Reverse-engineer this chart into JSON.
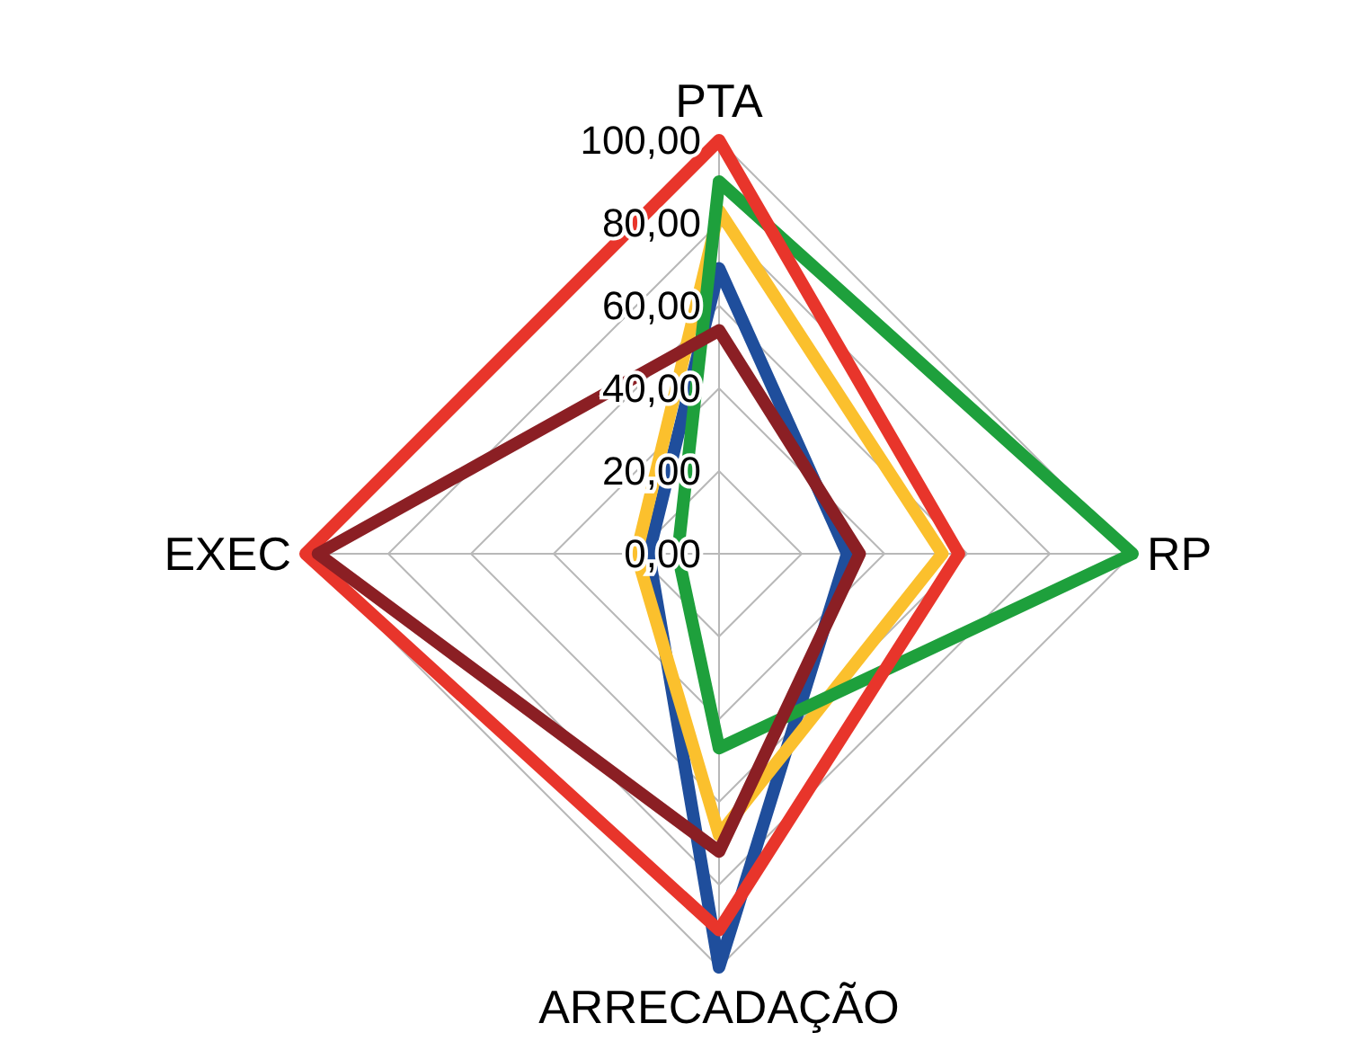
{
  "chart_data": {
    "type": "radar",
    "categories": [
      "PTA",
      "RP",
      "ARRECADAÇÃO",
      "EXEC"
    ],
    "series": [
      {
        "color": "#1f4e9c",
        "values": [
          69,
          31,
          100,
          17
        ]
      },
      {
        "color": "#fbc02d",
        "values": [
          83,
          54,
          68,
          20
        ]
      },
      {
        "color": "#1ea03c",
        "values": [
          90,
          100,
          47,
          10
        ]
      },
      {
        "color": "#e8352b",
        "values": [
          100,
          58,
          91,
          100
        ]
      },
      {
        "color": "#8b1f24",
        "values": [
          54,
          34,
          72,
          97
        ]
      }
    ],
    "ylim": [
      0,
      100
    ],
    "yticks": [
      {
        "value": 0,
        "label": "0,00"
      },
      {
        "value": 20,
        "label": "20,00"
      },
      {
        "value": 40,
        "label": "40,00"
      },
      {
        "value": 60,
        "label": "60,00"
      },
      {
        "value": 80,
        "label": "80,00"
      },
      {
        "value": 100,
        "label": "100,00"
      }
    ],
    "grid": true,
    "marker": "none",
    "line_style": "solid"
  }
}
